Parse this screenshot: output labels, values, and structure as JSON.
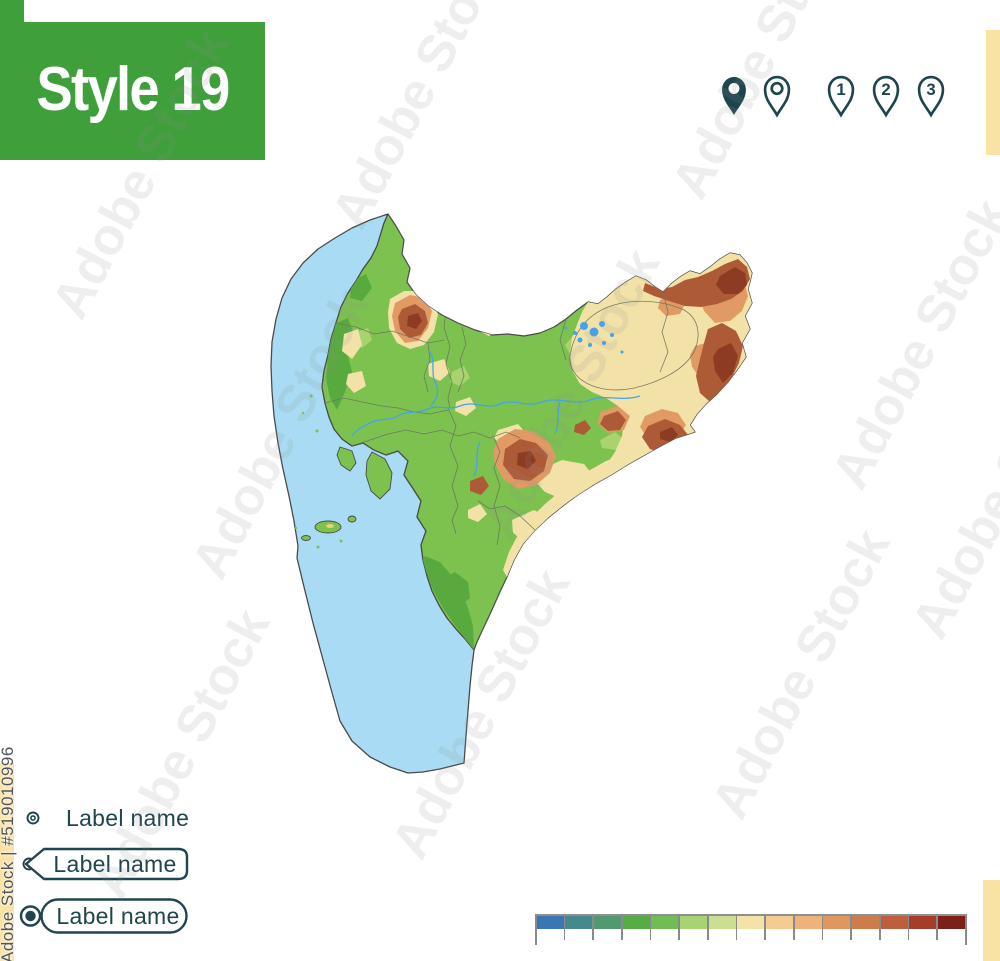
{
  "banner": {
    "title": "Style 19",
    "bg_color": "#3f9f3b",
    "text_color": "#ffffff"
  },
  "pins": {
    "color": "#1e454e",
    "numbers": [
      "1",
      "2",
      "3"
    ]
  },
  "label_samples": {
    "text_color": "#1f454e",
    "items": [
      {
        "style": "plain",
        "text": "Label name"
      },
      {
        "style": "pointed-tag",
        "text": "Label name"
      },
      {
        "style": "rounded-tag",
        "text": "Label name"
      }
    ]
  },
  "watermark": {
    "side_text": "Adobe Stock | #519010996",
    "tile_text": "Adobe Stock"
  },
  "elevation_scale": {
    "tick_color": "#8a8a8a",
    "colors": [
      "#3a76b4",
      "#45898e",
      "#519a70",
      "#56ad46",
      "#70bd55",
      "#a8d373",
      "#cbde91",
      "#f4e3a9",
      "#f4cb90",
      "#efb27b",
      "#e0975f",
      "#cd7c4b",
      "#bd5e3c",
      "#a63d2a",
      "#7d2118"
    ]
  },
  "map": {
    "sea_color": "#a9dcf4",
    "land_lowland_color": "#7dc24f",
    "lowland_dark_color": "#58aa3f",
    "lowland_light_color": "#a8d36e",
    "upland_color": "#f3e2a8",
    "hills_color": "#e29a64",
    "mountain_color": "#ad5a37",
    "peak_color": "#8e3b24",
    "outline_color": "#4a4a4a",
    "boundary_color": "#6b7263",
    "river_color": "#42a3f2"
  },
  "accent_strips": {
    "color": "#f8e2a4"
  }
}
